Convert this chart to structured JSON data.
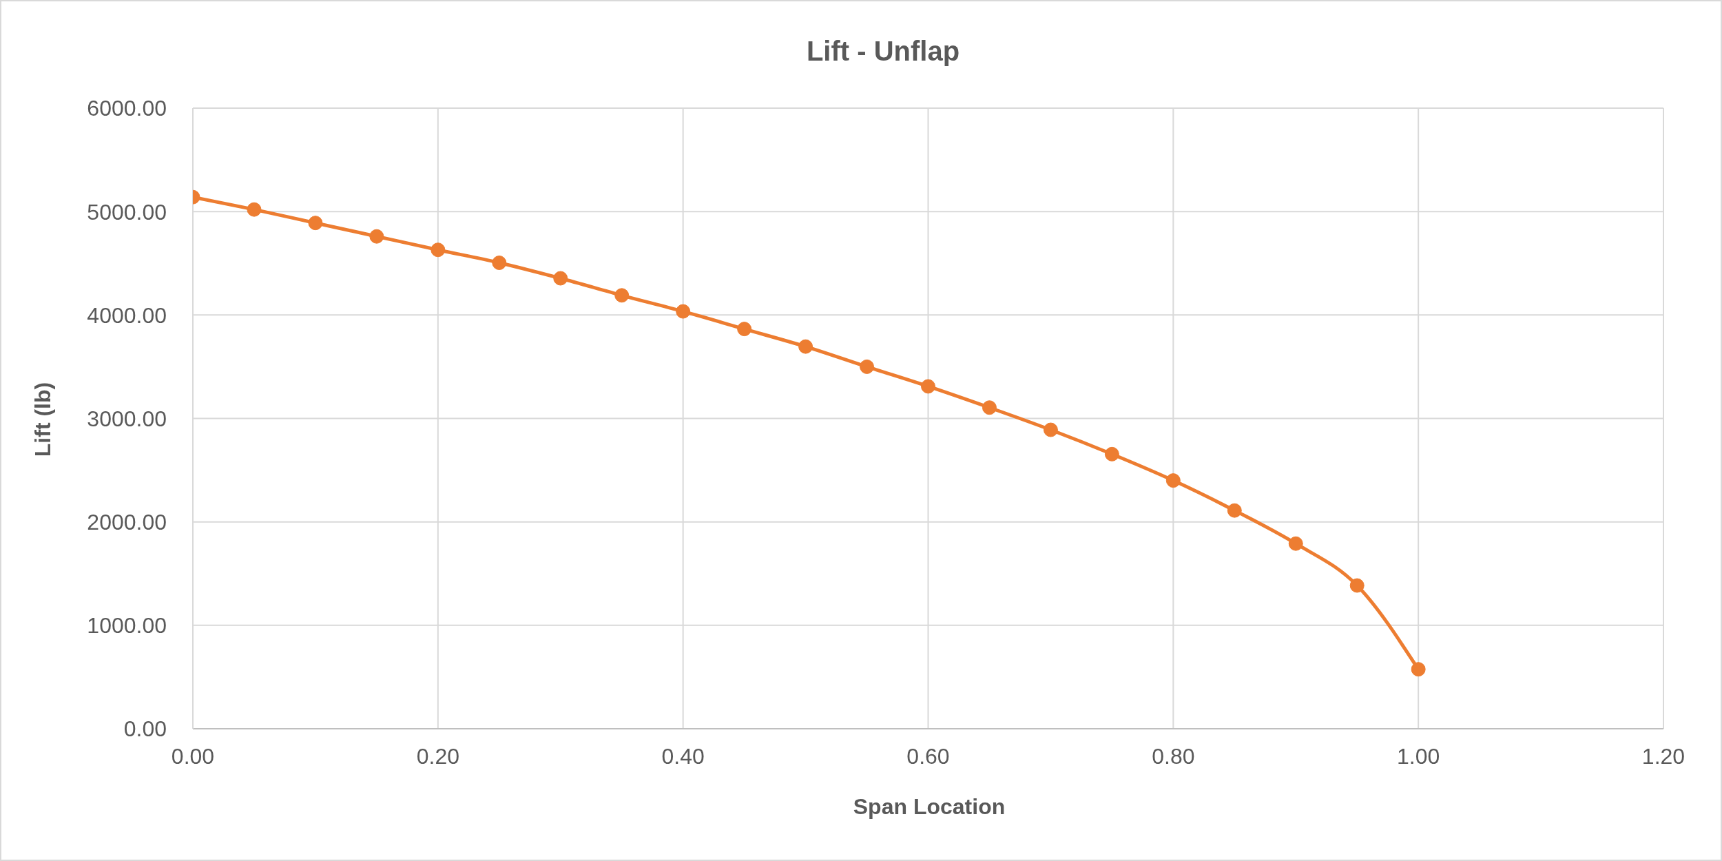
{
  "chart_data": {
    "type": "line",
    "title": "Lift - Unflap",
    "xlabel": "Span Location",
    "ylabel": "Lift (lb)",
    "x": [
      0,
      0.05,
      0.1,
      0.15,
      0.2,
      0.25,
      0.3,
      0.35,
      0.4,
      0.45,
      0.5,
      0.55,
      0.6,
      0.65,
      0.7,
      0.75,
      0.8,
      0.85,
      0.9,
      0.95,
      1.0
    ],
    "values": [
      5140,
      5020,
      4890,
      4760,
      4630,
      4505,
      4355,
      4190,
      4035,
      3865,
      3695,
      3500,
      3310,
      3105,
      2890,
      2655,
      2400,
      2110,
      1790,
      1385,
      575
    ],
    "color": "#ed7d31",
    "xlim": [
      0,
      1.2
    ],
    "xticks": [
      {
        "value": 0,
        "label": "0.00"
      },
      {
        "value": 0.2,
        "label": "0.20"
      },
      {
        "value": 0.4,
        "label": "0.40"
      },
      {
        "value": 0.6,
        "label": "0.60"
      },
      {
        "value": 0.8,
        "label": "0.80"
      },
      {
        "value": 1,
        "label": "1.00"
      },
      {
        "value": 1.2,
        "label": "1.20"
      }
    ],
    "ylim": [
      0,
      6000
    ],
    "yticks": [
      {
        "value": 0,
        "label": "0.00"
      },
      {
        "value": 1000,
        "label": "1000.00"
      },
      {
        "value": 2000,
        "label": "2000.00"
      },
      {
        "value": 3000,
        "label": "3000.00"
      },
      {
        "value": 4000,
        "label": "4000.00"
      },
      {
        "value": 5000,
        "label": "5000.00"
      },
      {
        "value": 6000,
        "label": "6000.00"
      }
    ],
    "grid": true,
    "marker": "circle",
    "line_style": "solid"
  }
}
